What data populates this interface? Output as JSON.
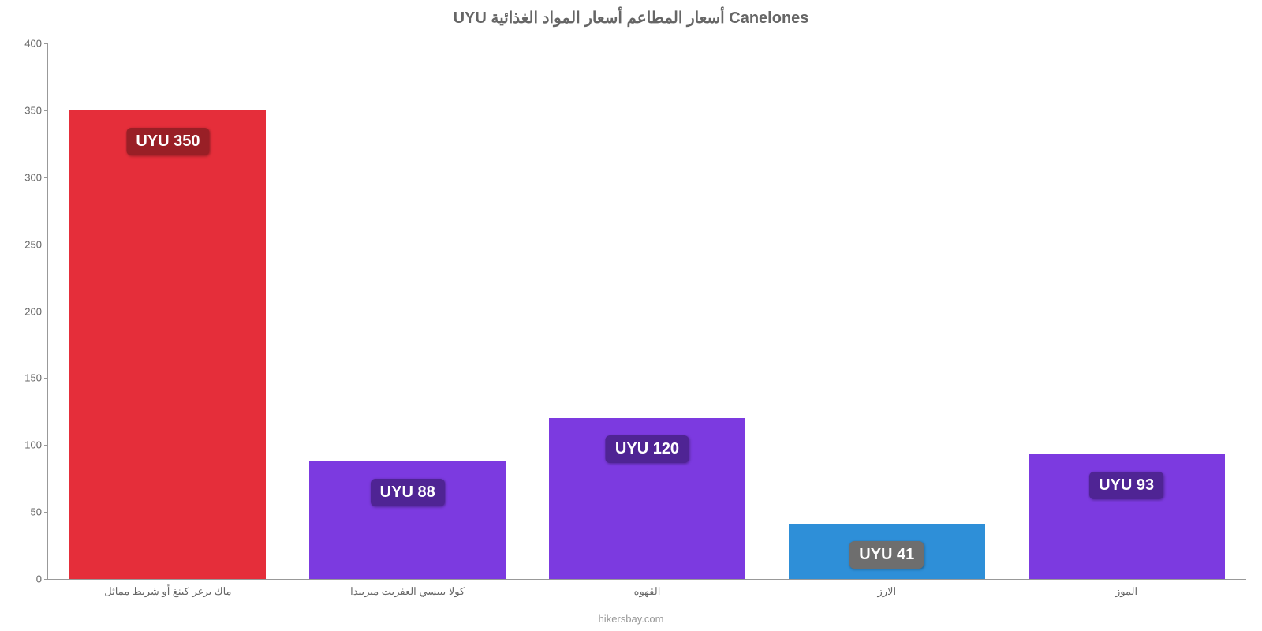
{
  "chart": {
    "type": "bar",
    "title": "UYU أسعار المطاعم أسعار المواد الغذائية Canelones",
    "title_fontsize": 20,
    "title_color": "#666666",
    "background_color": "#ffffff",
    "ylim": [
      0,
      400
    ],
    "ytick_step": 50,
    "yticks": [
      0,
      50,
      100,
      150,
      200,
      250,
      300,
      350,
      400
    ],
    "axis_color": "#999999",
    "tick_label_color": "#666666",
    "tick_label_fontsize": 13,
    "xlabel_fontsize": 13,
    "xlabel_color": "#666666",
    "bar_width_pct": 82,
    "badge_fontsize": 20,
    "badge_radius": 6,
    "badge_text_color": "#ffffff",
    "attribution": "hikersbay.com",
    "attribution_color": "#999999",
    "items": [
      {
        "category": "ماك برغر كينغ أو شريط مماثل",
        "value": 350,
        "value_label": "UYU 350",
        "bar_color": "#e52e3a",
        "badge_bg": "#991f26"
      },
      {
        "category": "كولا بيبسي العفريت ميريندا",
        "value": 88,
        "value_label": "UYU 88",
        "bar_color": "#7c3ae0",
        "badge_bg": "#4f2494"
      },
      {
        "category": "القهوه",
        "value": 120,
        "value_label": "UYU 120",
        "bar_color": "#7c3ae0",
        "badge_bg": "#4f2494"
      },
      {
        "category": "الارز",
        "value": 41,
        "value_label": "UYU 41",
        "bar_color": "#2e8fd8",
        "badge_bg": "#6e6e6e"
      },
      {
        "category": "الموز",
        "value": 93,
        "value_label": "UYU 93",
        "bar_color": "#7c3ae0",
        "badge_bg": "#4f2494"
      }
    ]
  }
}
